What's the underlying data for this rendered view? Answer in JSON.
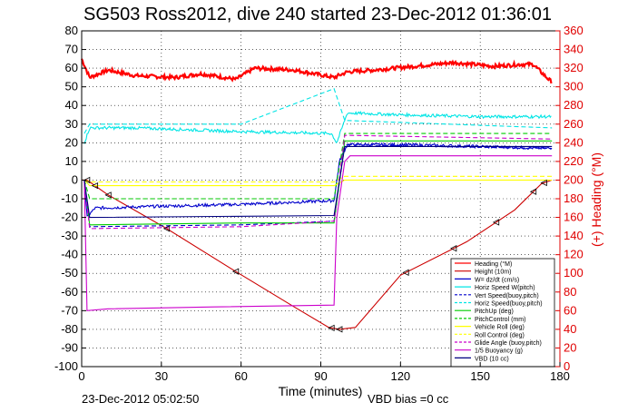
{
  "chart_data": {
    "type": "line",
    "title": "SG503 Ross2012, dive 240 started 23-Dec-2012 01:36:01",
    "xlabel": "Time (minutes)",
    "ylabel_right": "(+) Heading (°M)",
    "xlim": [
      0,
      180
    ],
    "ylim": [
      -100,
      80
    ],
    "ylim_right": [
      0,
      360
    ],
    "xticks": [
      0,
      30,
      60,
      90,
      120,
      150,
      180
    ],
    "yticks": [
      80,
      70,
      60,
      50,
      40,
      30,
      20,
      10,
      0,
      -10,
      -20,
      -30,
      -40,
      -50,
      -60,
      -70,
      -80,
      -90,
      -100
    ],
    "yticks_right": [
      360,
      340,
      320,
      300,
      280,
      260,
      240,
      220,
      200,
      180,
      160,
      140,
      120,
      100,
      80,
      60,
      40,
      20,
      0
    ],
    "grid": true,
    "legend_position": "bottom-right",
    "footer_date": "23-Dec-2012 05:02:50",
    "footer_note": "VBD bias =0 cc",
    "series": [
      {
        "name": "Heading (°M)",
        "color": "#ff0000",
        "axis": "right",
        "style": "noisy-thick",
        "x": [
          0,
          3,
          10,
          20,
          35,
          45,
          58,
          65,
          80,
          95,
          100,
          110,
          125,
          140,
          155,
          165,
          170,
          175,
          177
        ],
        "y": [
          330,
          310,
          318,
          312,
          310,
          314,
          308,
          320,
          318,
          310,
          316,
          318,
          322,
          326,
          322,
          324,
          324,
          310,
          305
        ]
      },
      {
        "name": "Height (10m)",
        "color": "#cc0000",
        "axis": "left",
        "style": "solid",
        "x": [
          0,
          2,
          10,
          32,
          58,
          80,
          93,
          97,
          103,
          120,
          145,
          163,
          173,
          177
        ],
        "y": [
          0,
          0,
          -8,
          -26,
          -49,
          -68,
          -79,
          -80,
          -79,
          -51,
          -33,
          -16,
          -2,
          0
        ]
      },
      {
        "name": "W= dz/dt (cm/s)",
        "color": "#0000cc",
        "axis": "left",
        "style": "noisy",
        "x": [
          1,
          2,
          5,
          30,
          60,
          95,
          97,
          100,
          120,
          150,
          177
        ],
        "y": [
          0,
          -20,
          -15,
          -14,
          -13,
          -11,
          10,
          19,
          19,
          18,
          17
        ]
      },
      {
        "name": "Horiz Speed W(pitch)",
        "color": "#00e5e5",
        "axis": "left",
        "style": "noisy",
        "x": [
          1,
          3,
          20,
          60,
          94,
          96,
          100,
          120,
          150,
          177
        ],
        "y": [
          20,
          28,
          28,
          26,
          25,
          20,
          36,
          35,
          34,
          34
        ]
      },
      {
        "name": "Vert Speed(buoy,pitch)",
        "color": "#0000cc",
        "axis": "left",
        "style": "dash",
        "x": [
          1,
          3,
          60,
          95,
          99,
          130,
          177
        ],
        "y": [
          0,
          -25,
          -24,
          -22,
          19,
          18,
          17
        ]
      },
      {
        "name": "Horiz Speed(buoy,pitch)",
        "color": "#00e5e5",
        "axis": "left",
        "style": "dash",
        "x": [
          1,
          3,
          60,
          95,
          99,
          177
        ],
        "y": [
          25,
          30,
          30,
          49,
          32,
          28
        ]
      },
      {
        "name": "PitchUp (deg)",
        "color": "#00cc00",
        "axis": "left",
        "style": "solid",
        "x": [
          1,
          3,
          60,
          95,
          99,
          177
        ],
        "y": [
          0,
          -24,
          -23,
          -23,
          21,
          21
        ]
      },
      {
        "name": "PitchControl (mm)",
        "color": "#00cc00",
        "axis": "left",
        "style": "dash",
        "x": [
          1,
          3,
          95,
          99,
          177
        ],
        "y": [
          0,
          -10,
          -10,
          25,
          25
        ]
      },
      {
        "name": "Vehicle Roll (deg)",
        "color": "#ffff00",
        "axis": "left",
        "style": "solid",
        "x": [
          1,
          3,
          95,
          99,
          177
        ],
        "y": [
          0,
          -3,
          -3,
          0,
          0
        ]
      },
      {
        "name": "Roll Control (deg)",
        "color": "#ffff00",
        "axis": "left",
        "style": "dash",
        "x": [
          1,
          3,
          95,
          99,
          177
        ],
        "y": [
          0,
          -1,
          -1,
          2,
          2
        ]
      },
      {
        "name": "Glide Angle (buoy,pitch)",
        "color": "#cc00cc",
        "axis": "left",
        "style": "dash",
        "x": [
          1,
          3,
          60,
          95,
          99,
          177
        ],
        "y": [
          0,
          -26,
          -25,
          -22,
          24,
          22
        ]
      },
      {
        "name": "1/5 Buoyancy (g)",
        "color": "#cc00cc",
        "axis": "left",
        "style": "solid",
        "x": [
          1,
          2,
          10,
          50,
          95,
          96,
          99,
          101,
          177
        ],
        "y": [
          0,
          -70,
          -69,
          -68,
          -67,
          -20,
          10,
          13,
          13
        ]
      },
      {
        "name": "VBD (10 cc)",
        "color": "#000080",
        "axis": "left",
        "style": "solid",
        "x": [
          1,
          3,
          95,
          99,
          177
        ],
        "y": [
          0,
          -20,
          -19,
          18,
          18
        ]
      }
    ]
  }
}
